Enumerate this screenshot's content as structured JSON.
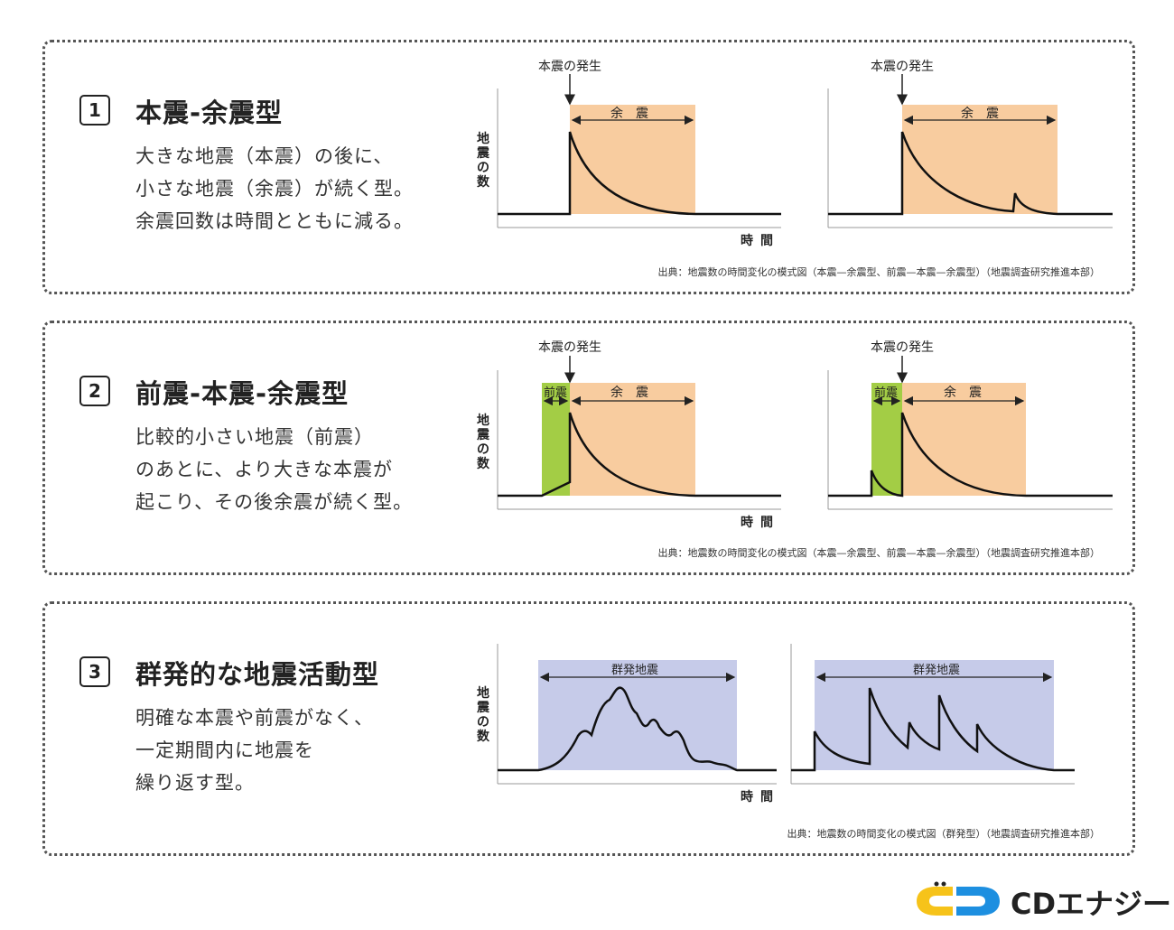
{
  "panels": [
    {
      "number": "1",
      "title": "本震-余震型",
      "desc": [
        "大きな地震（本震）の後に、",
        "小さな地震（余震）が続く型。",
        "余震回数は時間とともに減る。"
      ],
      "source": "出典：地震数の時間変化の模式図（本震—余震型、前震—本震—余震型）（地震調査研究推進本部）"
    },
    {
      "number": "2",
      "title": "前震-本震-余震型",
      "desc": [
        "比較的小さい地震（前震）",
        "のあとに、より大きな本震が",
        "起こり、その後余震が続く型。"
      ],
      "source": "出典：地震数の時間変化の模式図（本震—余震型、前震—本震—余震型）（地震調査研究推進本部）"
    },
    {
      "number": "3",
      "title": "群発的な地震活動型",
      "desc": [
        "明確な本震や前震がなく、",
        "一定期間内に地震を",
        "繰り返す型。"
      ],
      "source": "出典：地震数の時間変化の模式図（群発型）（地震調査研究推進本部）"
    }
  ],
  "chart_labels": {
    "mainshock": "本震の発生",
    "aftershock": "余　震",
    "foreshock": "前震",
    "swarm": "群発地震",
    "ylabel": "地震の数",
    "xlabel": "時間"
  },
  "colors": {
    "aftershock_fill": "#f8cc9f",
    "foreshock_fill": "#a3cd45",
    "swarm_fill": "#c6cbe9",
    "logo_yellow": "#f6c31a",
    "logo_blue": "#1d8fe0"
  },
  "logo": {
    "text": "CDエナジー"
  }
}
